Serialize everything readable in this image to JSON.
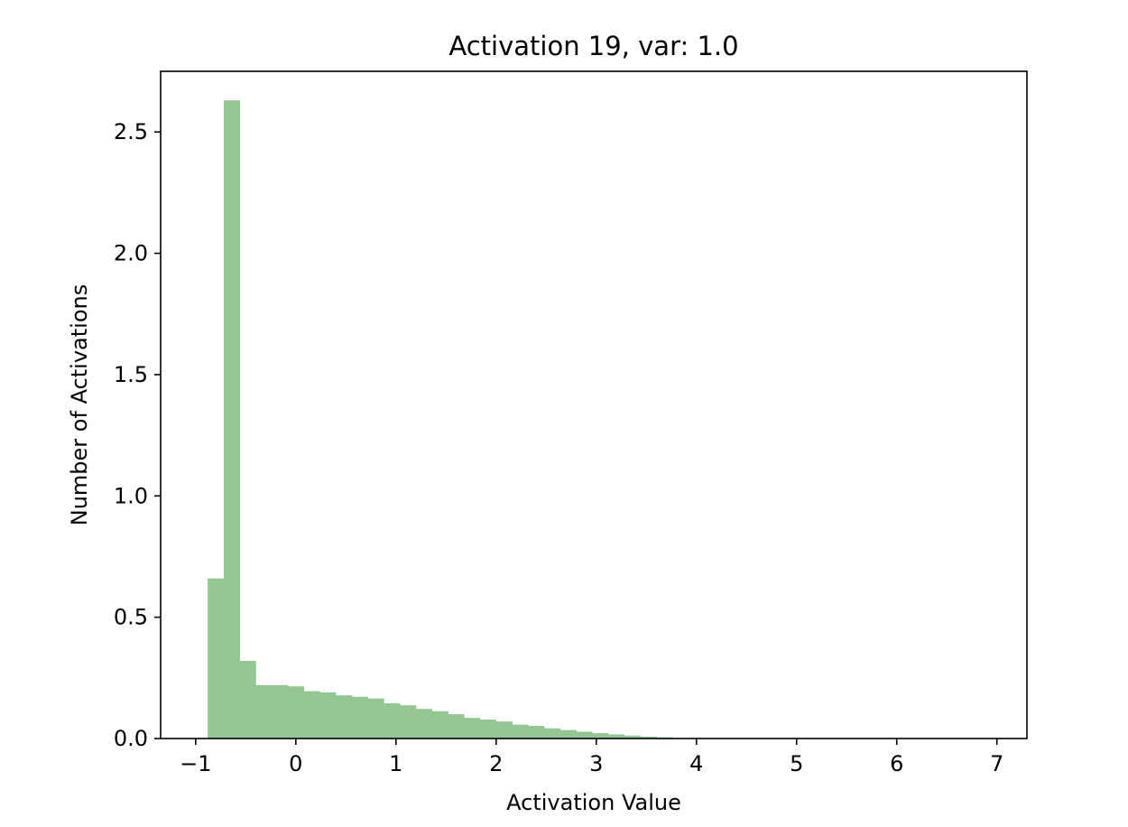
{
  "chart_data": {
    "type": "bar",
    "title": "Activation 19, var: 1.0",
    "xlabel": "Activation Value",
    "ylabel": "Number of Activations",
    "xlim": [
      -1.35,
      7.3
    ],
    "ylim": [
      0,
      2.75
    ],
    "xticks": [
      -1,
      0,
      1,
      2,
      3,
      4,
      5,
      6,
      7
    ],
    "xtick_labels": [
      "−1",
      "0",
      "1",
      "2",
      "3",
      "4",
      "5",
      "6",
      "7"
    ],
    "yticks": [
      0.0,
      0.5,
      1.0,
      1.5,
      2.0,
      2.5
    ],
    "ytick_labels": [
      "0.0",
      "0.5",
      "1.0",
      "1.5",
      "2.0",
      "2.5"
    ],
    "grid": false,
    "bar_color": "#93c693",
    "bin_width": 0.16,
    "bin_starts": [
      -0.88,
      -0.72,
      -0.56,
      -0.4,
      -0.24,
      -0.08,
      0.08,
      0.24,
      0.4,
      0.56,
      0.72,
      0.88,
      1.04,
      1.2,
      1.36,
      1.52,
      1.68,
      1.84,
      2.0,
      2.16,
      2.32,
      2.48,
      2.64,
      2.8,
      2.96,
      3.12,
      3.28,
      3.44,
      3.6
    ],
    "values": [
      0.66,
      2.63,
      0.32,
      0.22,
      0.22,
      0.215,
      0.195,
      0.19,
      0.178,
      0.172,
      0.165,
      0.145,
      0.137,
      0.122,
      0.113,
      0.1,
      0.085,
      0.078,
      0.07,
      0.057,
      0.052,
      0.042,
      0.035,
      0.028,
      0.022,
      0.017,
      0.012,
      0.008,
      0.005
    ]
  }
}
